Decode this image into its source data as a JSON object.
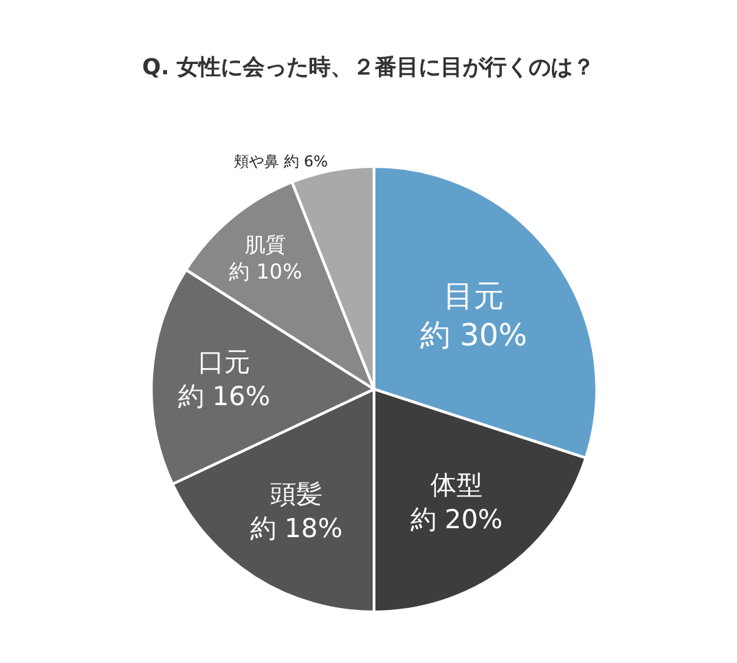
{
  "chart_data": {
    "type": "pie",
    "title": "Q. 女性に会った時、２番目に目が行くのは？",
    "categories": [
      "目元",
      "体型",
      "頭髪",
      "口元",
      "肌質",
      "頬や鼻"
    ],
    "values": [
      30,
      20,
      18,
      16,
      10,
      6
    ],
    "colors": [
      "#62a0cc",
      "#3d3d3d",
      "#545454",
      "#6b6b6b",
      "#888888",
      "#a9a9a9"
    ],
    "value_labels": [
      "約 30%",
      "約 20%",
      "約 18%",
      "約 16%",
      "約 10%",
      "約 6%"
    ]
  }
}
